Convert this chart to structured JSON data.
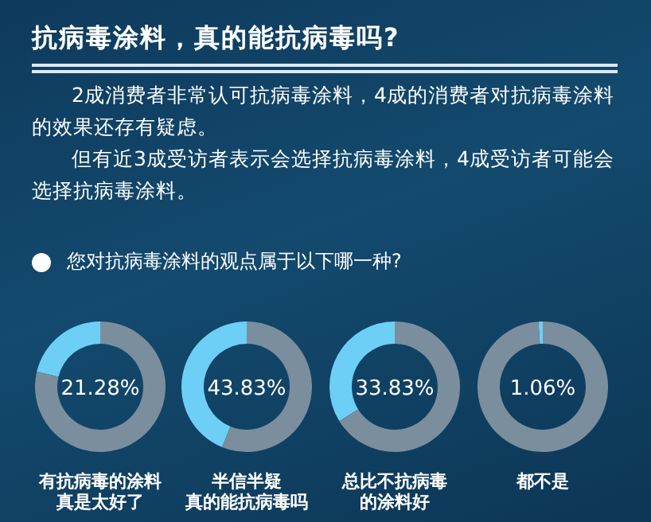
{
  "chart_data": [
    {
      "type": "other",
      "title": "抗病毒涂料，真的能抗病毒吗?",
      "annotations": [
        "2成消费者非常认可抗病毒涂料，4成的消费者对抗病毒涂料的效果还存有疑虑。",
        "但有近3成受访者表示会选择抗病毒涂料，4成受访者可能会选择抗病毒涂料。",
        "您对抗病毒涂料的观点属于以下哪一种?"
      ]
    },
    {
      "type": "donut",
      "title": "有抗病毒的涂料真是太好了",
      "categories": [
        null,
        null
      ],
      "values": [
        21.28,
        78.72
      ],
      "colors": [
        "#6dcff6",
        "#7b8e9d"
      ],
      "annotations": [
        "21.28%"
      ]
    },
    {
      "type": "donut",
      "title": "半信半疑真的能抗病毒吗",
      "categories": [
        null,
        null
      ],
      "values": [
        43.83,
        56.17
      ],
      "colors": [
        "#6dcff6",
        "#7b8e9d"
      ],
      "annotations": [
        "43.83%"
      ]
    },
    {
      "type": "donut",
      "title": "总比不抗病毒的涂料好",
      "categories": [
        null,
        null
      ],
      "values": [
        33.83,
        66.17
      ],
      "colors": [
        "#6dcff6",
        "#7b8e9d"
      ],
      "annotations": [
        "33.83%"
      ]
    },
    {
      "type": "donut",
      "title": "都不是",
      "categories": [
        null,
        null
      ],
      "values": [
        1.06,
        98.94
      ],
      "colors": [
        "#6dcff6",
        "#7b8e9d"
      ],
      "annotations": [
        "1.06%"
      ]
    }
  ]
}
